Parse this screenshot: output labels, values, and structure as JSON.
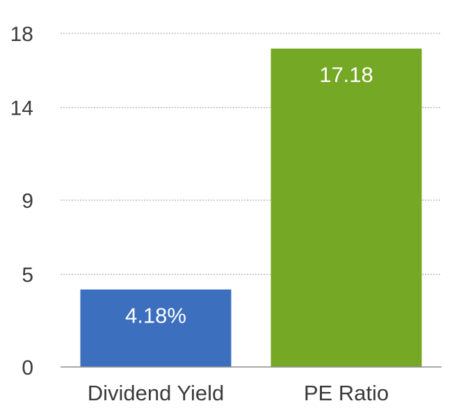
{
  "chart_data": {
    "type": "bar",
    "title": "",
    "xlabel": "",
    "ylabel": "",
    "categories": [
      "Dividend Yield",
      "PE Ratio"
    ],
    "values": [
      4.18,
      17.18
    ],
    "data_labels": [
      "4.18%",
      "17.18"
    ],
    "colors": [
      "#3d6fbf",
      "#75a824"
    ],
    "ylim": [
      0,
      18
    ],
    "yticks": [
      0,
      5,
      9,
      14,
      18
    ],
    "ytick_labels": [
      "0",
      "5",
      "9",
      "14",
      "18"
    ],
    "grid": true,
    "grid_style": "dotted",
    "legend": "none"
  }
}
